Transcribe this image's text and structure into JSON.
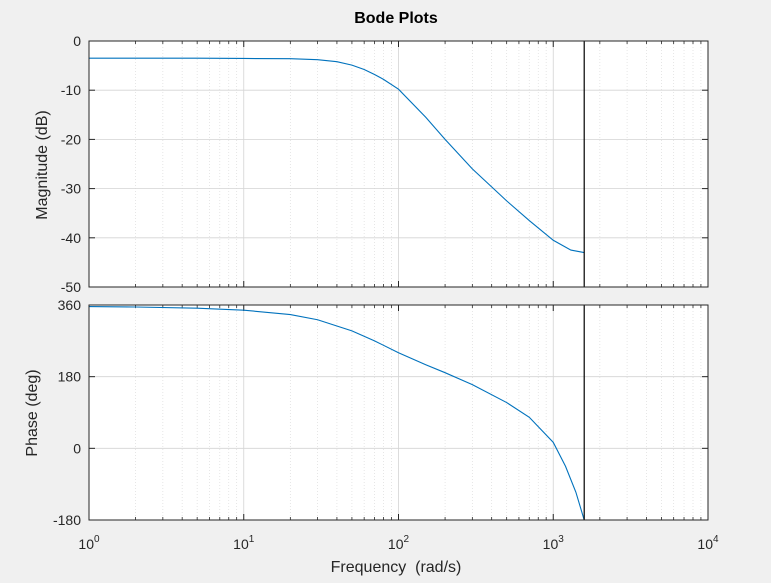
{
  "chart_data": [
    {
      "type": "line",
      "title": "Bode Plots",
      "xlabel": "",
      "ylabel": "Magnitude (dB)",
      "xscale": "log",
      "xlim": [
        1,
        10000
      ],
      "ylim": [
        -50,
        0
      ],
      "yticks": [
        0,
        -10,
        -20,
        -30,
        -40,
        -50
      ],
      "grid": true,
      "series": [
        {
          "color": "#0072bd",
          "x": [
            1,
            2,
            5,
            10,
            20,
            30,
            40,
            50,
            60,
            70,
            80,
            100,
            150,
            200,
            300,
            500,
            700,
            1000,
            1300,
            1585
          ],
          "y": [
            -3.5,
            -3.5,
            -3.5,
            -3.55,
            -3.6,
            -3.8,
            -4.2,
            -4.9,
            -5.8,
            -6.8,
            -7.8,
            -9.8,
            -15.5,
            -20.0,
            -26.0,
            -32.5,
            -36.5,
            -40.5,
            -42.5,
            -43.0
          ]
        }
      ],
      "vline_x": 1585
    },
    {
      "type": "line",
      "title": "",
      "xlabel": "Frequency  (rad/s)",
      "ylabel": "Phase (deg)",
      "xscale": "log",
      "xlim": [
        1,
        10000
      ],
      "ylim": [
        -180,
        360
      ],
      "yticks": [
        360,
        180,
        0,
        -180
      ],
      "xticks": [
        {
          "base": "10",
          "exp": "0",
          "value": 1
        },
        {
          "base": "10",
          "exp": "1",
          "value": 10
        },
        {
          "base": "10",
          "exp": "2",
          "value": 100
        },
        {
          "base": "10",
          "exp": "3",
          "value": 1000
        },
        {
          "base": "10",
          "exp": "4",
          "value": 10000
        }
      ],
      "grid": true,
      "series": [
        {
          "color": "#0072bd",
          "x": [
            1,
            2,
            5,
            10,
            20,
            30,
            50,
            70,
            100,
            150,
            200,
            300,
            500,
            700,
            1000,
            1200,
            1400,
            1585
          ],
          "y": [
            356,
            355,
            352,
            347,
            336,
            323,
            295,
            270,
            240,
            210,
            190,
            160,
            115,
            78,
            15,
            -45,
            -110,
            -180
          ]
        }
      ],
      "vline_x": 1585
    }
  ]
}
